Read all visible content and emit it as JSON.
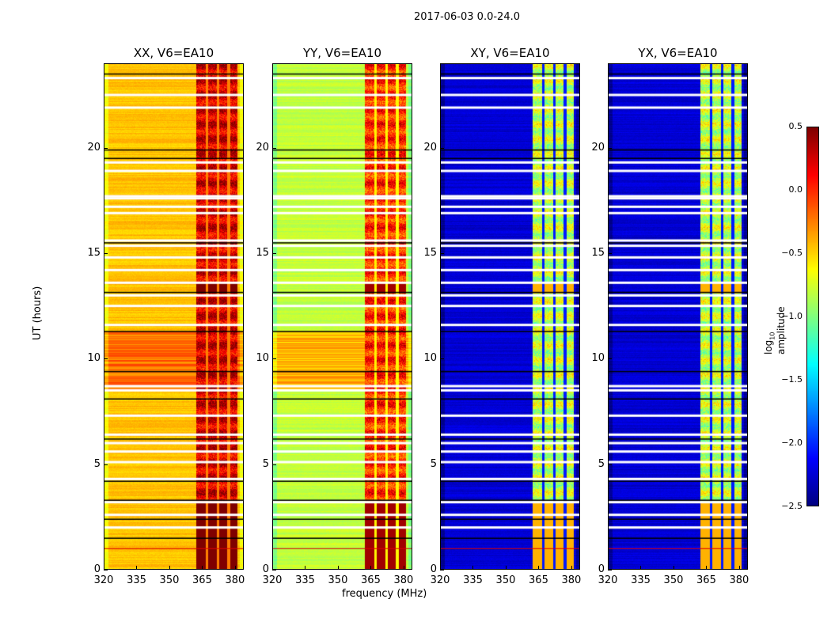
{
  "chart_data": {
    "type": "heatmap",
    "title": "2017-06-03 0.0-24.0",
    "xlabel": "frequency (MHz)",
    "ylabel": "UT (hours)",
    "xlim": [
      320,
      384
    ],
    "ylim": [
      0,
      24
    ],
    "xticks": [
      "320",
      "335",
      "350",
      "365",
      "380"
    ],
    "yticks": [
      "0",
      "5",
      "10",
      "15",
      "20"
    ],
    "colorbar": {
      "label": "log10 amplitude",
      "label_main": "log",
      "label_sub": "10",
      "label_rest": " amplitude",
      "range": [
        -2.5,
        0.5
      ],
      "ticks": [
        "0.5",
        "0.0",
        "−0.5",
        "−1.0",
        "−1.5",
        "−2.0",
        "−2.5"
      ],
      "colormap": "jet"
    },
    "rfi_band_mhz": [
      362,
      381
    ],
    "band_gaps_mhz": [
      367,
      372,
      377
    ],
    "flagged_white_hours": [
      23.3,
      22.5,
      21.9,
      19.3,
      18.9,
      17.7,
      17.6,
      17.2,
      16.9,
      15.6,
      15.35,
      14.8,
      14.2,
      13.6,
      13.0,
      12.5,
      11.6,
      8.7,
      8.5,
      7.3,
      6.4,
      6.0,
      5.6,
      5.1,
      4.3,
      3.2,
      2.6,
      2.0
    ],
    "flagged_black_hours": [
      23.5,
      19.9,
      19.5,
      15.5,
      13.15,
      11.3,
      9.4,
      8.1,
      6.2,
      4.2,
      3.3,
      2.4,
      1.5
    ],
    "red_line_hours": [
      1.0
    ],
    "panels": [
      {
        "title": "XX, V6=EA10",
        "base": -0.45,
        "band": 0.15,
        "bright_hours": [
          8.5,
          11.3
        ],
        "bright_level": -0.2
      },
      {
        "title": "YY, V6=EA10",
        "base": -0.8,
        "band": -0.1,
        "bright_hours": [
          8.5,
          11.3
        ],
        "bright_level": -0.4
      },
      {
        "title": "XY, V6=EA10",
        "base": -2.25,
        "band": -0.9,
        "bright_hours": [],
        "bright_level": -2.2
      },
      {
        "title": "YX, V6=EA10",
        "base": -2.25,
        "band": -0.9,
        "bright_hours": [],
        "bright_level": -2.2
      }
    ]
  }
}
